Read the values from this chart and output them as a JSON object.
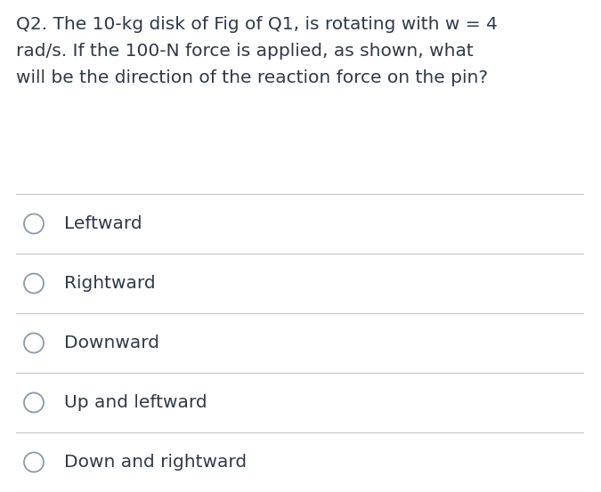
{
  "question_lines": [
    "Q2. The 10-kg disk of Fig of Q1, is rotating with w = 4",
    "rad/s. If the 100-N force is applied, as shown, what",
    "will be the direction of the reaction force on the pin?"
  ],
  "options": [
    "Leftward",
    "Rightward",
    "Downward",
    "Up and leftward",
    "Down and rightward"
  ],
  "bg_color": "#ffffff",
  "text_color": "#2e3a4a",
  "line_color": "#c8c8c8",
  "circle_color": "#8a9aaa",
  "question_fontsize": 14.5,
  "option_fontsize": 14.5,
  "fig_width": 6.75,
  "fig_height": 5.53,
  "dpi": 100
}
